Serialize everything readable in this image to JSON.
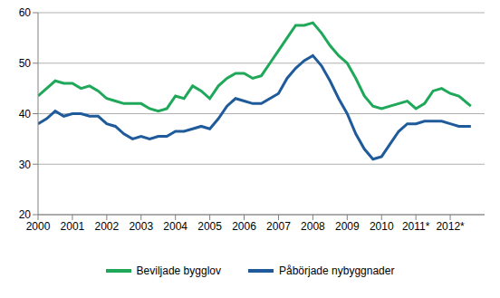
{
  "chart_data": {
    "type": "line",
    "x": [
      2000,
      2000.25,
      2000.5,
      2000.75,
      2001,
      2001.25,
      2001.5,
      2001.75,
      2002,
      2002.25,
      2002.5,
      2002.75,
      2003,
      2003.25,
      2003.5,
      2003.75,
      2004,
      2004.25,
      2004.5,
      2004.75,
      2005,
      2005.25,
      2005.5,
      2005.75,
      2006,
      2006.25,
      2006.5,
      2006.75,
      2007,
      2007.25,
      2007.5,
      2007.75,
      2008,
      2008.25,
      2008.5,
      2008.75,
      2009,
      2009.25,
      2009.5,
      2009.75,
      2010,
      2010.25,
      2010.5,
      2010.75,
      2011,
      2011.25,
      2011.5,
      2011.75,
      2012,
      2012.25,
      2012.6
    ],
    "series": [
      {
        "name": "Beviljade bygglov",
        "color": "#1fa85a",
        "values": [
          43.5,
          45,
          46.5,
          46,
          46,
          45,
          45.5,
          44.5,
          43,
          42.5,
          42,
          42,
          42,
          41,
          40.5,
          41,
          43.5,
          43,
          45.5,
          44.5,
          43,
          45.5,
          47,
          48,
          48,
          47,
          47.5,
          50,
          52.5,
          55,
          57.5,
          57.5,
          58,
          56,
          53.5,
          51.5,
          50,
          47,
          43.5,
          41.5,
          41,
          41.5,
          42,
          42.5,
          41,
          42,
          44.5,
          45,
          44,
          43.5,
          41.5
        ]
      },
      {
        "name": "Påbörjade nybyggnader",
        "color": "#1f5b9a",
        "values": [
          38,
          39,
          40.5,
          39.5,
          40,
          40,
          39.5,
          39.5,
          38,
          37.5,
          36,
          35,
          35.5,
          35,
          35.5,
          35.5,
          36.5,
          36.5,
          37,
          37.5,
          37,
          39,
          41.5,
          43,
          42.5,
          42,
          42,
          43,
          44,
          47,
          49,
          50.5,
          51.5,
          49.5,
          46.5,
          43,
          40,
          36,
          33,
          31,
          31.5,
          34,
          36.5,
          38,
          38,
          38.5,
          38.5,
          38.5,
          38,
          37.5,
          37.5
        ]
      }
    ],
    "xlim": [
      2000,
      2013
    ],
    "xticks": [
      2000,
      2001,
      2002,
      2003,
      2004,
      2005,
      2006,
      2007,
      2008,
      2009,
      2010,
      {
        "value": 2011,
        "label": "2011*"
      },
      {
        "value": 2012,
        "label": "2012*"
      }
    ],
    "ylim": [
      20,
      60
    ],
    "yticks": [
      20,
      30,
      40,
      50,
      60
    ],
    "grid": true,
    "legend": "bottom"
  }
}
